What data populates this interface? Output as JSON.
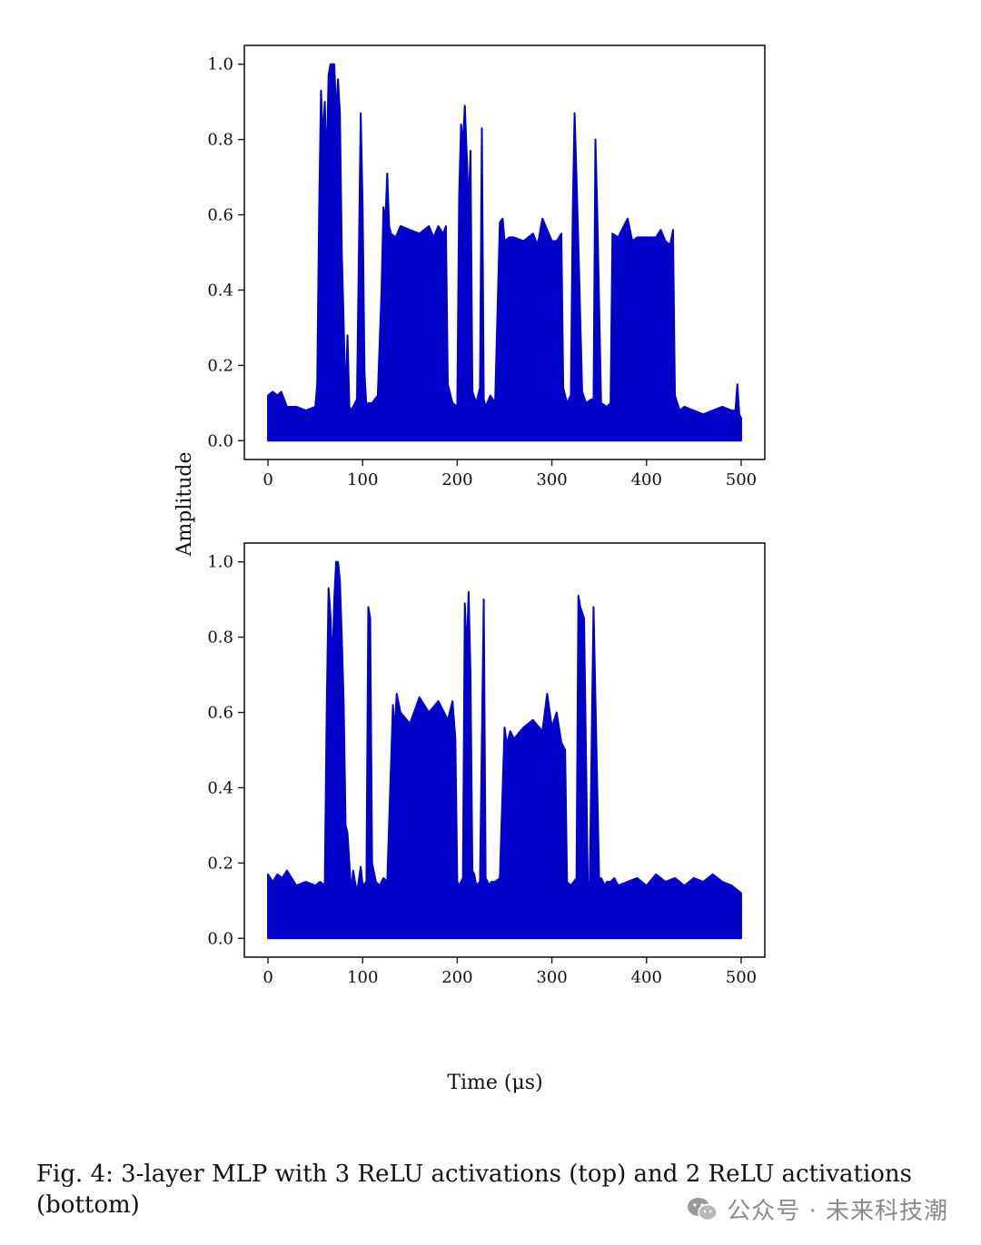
{
  "figure": {
    "shared_ylabel": "Amplitude",
    "shared_xlabel": "Time (μs)",
    "caption": "Fig. 4: 3-layer MLP with 3 ReLU activations (top) and 2 ReLU activations (bottom)"
  },
  "watermark": {
    "text": "公众号 · 未来科技潮"
  },
  "colors": {
    "series": "#0000c8",
    "axes": "#1a1a1a",
    "watermark": "#8a8a8a"
  },
  "chart_data": [
    {
      "type": "line",
      "title": "",
      "xlabel": "Time (μs)",
      "ylabel": "Amplitude",
      "xlim": [
        -25,
        525
      ],
      "ylim": [
        -0.05,
        1.05
      ],
      "xticks": [
        "0",
        "100",
        "200",
        "300",
        "400",
        "500"
      ],
      "yticks": [
        "0.0",
        "0.2",
        "0.4",
        "0.6",
        "0.8",
        "1.0"
      ],
      "grid": false,
      "series": [
        {
          "x": [
            0,
            5,
            10,
            14,
            20,
            30,
            40,
            50,
            52,
            54,
            56,
            58,
            60,
            62,
            64,
            66,
            68,
            70,
            72,
            74,
            76,
            78,
            80,
            82,
            84,
            86,
            88,
            90,
            94,
            98,
            100,
            102,
            104,
            106,
            110,
            116,
            120,
            122,
            124,
            126,
            128,
            130,
            135,
            140,
            150,
            160,
            170,
            175,
            180,
            185,
            188,
            190,
            195,
            200,
            202,
            204,
            206,
            208,
            210,
            212,
            214,
            216,
            220,
            224,
            226,
            228,
            230,
            235,
            240,
            245,
            248,
            250,
            255,
            260,
            270,
            280,
            285,
            290,
            300,
            305,
            310,
            312,
            316,
            320,
            322,
            324,
            326,
            328,
            332,
            336,
            342,
            344,
            346,
            348,
            352,
            358,
            362,
            364,
            370,
            380,
            385,
            390,
            400,
            410,
            415,
            420,
            425,
            428,
            430,
            435,
            440,
            450,
            460,
            470,
            480,
            490,
            494,
            496,
            498,
            500
          ],
          "y": [
            0.12,
            0.13,
            0.12,
            0.13,
            0.09,
            0.09,
            0.08,
            0.09,
            0.15,
            0.6,
            0.93,
            0.8,
            0.9,
            0.72,
            0.97,
            1.0,
            1.0,
            1.0,
            0.87,
            0.96,
            0.87,
            0.5,
            0.31,
            0.1,
            0.28,
            0.09,
            0.08,
            0.09,
            0.11,
            0.87,
            0.62,
            0.18,
            0.09,
            0.1,
            0.1,
            0.12,
            0.4,
            0.62,
            0.58,
            0.71,
            0.57,
            0.55,
            0.54,
            0.57,
            0.56,
            0.55,
            0.57,
            0.54,
            0.57,
            0.55,
            0.57,
            0.15,
            0.1,
            0.09,
            0.65,
            0.84,
            0.79,
            0.89,
            0.76,
            0.62,
            0.77,
            0.13,
            0.1,
            0.14,
            0.83,
            0.11,
            0.09,
            0.12,
            0.1,
            0.58,
            0.59,
            0.53,
            0.54,
            0.54,
            0.53,
            0.55,
            0.52,
            0.59,
            0.53,
            0.53,
            0.55,
            0.14,
            0.1,
            0.12,
            0.6,
            0.87,
            0.7,
            0.52,
            0.13,
            0.1,
            0.11,
            0.1,
            0.8,
            0.6,
            0.1,
            0.09,
            0.1,
            0.55,
            0.54,
            0.59,
            0.53,
            0.54,
            0.54,
            0.54,
            0.56,
            0.53,
            0.52,
            0.56,
            0.12,
            0.08,
            0.09,
            0.08,
            0.07,
            0.08,
            0.09,
            0.08,
            0.08,
            0.15,
            0.07,
            0.06
          ]
        }
      ]
    },
    {
      "type": "line",
      "title": "",
      "xlabel": "Time (μs)",
      "ylabel": "Amplitude",
      "xlim": [
        -25,
        525
      ],
      "ylim": [
        -0.05,
        1.05
      ],
      "xticks": [
        "0",
        "100",
        "200",
        "300",
        "400",
        "500"
      ],
      "yticks": [
        "0.0",
        "0.2",
        "0.4",
        "0.6",
        "0.8",
        "1.0"
      ],
      "grid": false,
      "series": [
        {
          "x": [
            0,
            5,
            10,
            15,
            20,
            30,
            40,
            50,
            55,
            60,
            62,
            64,
            66,
            68,
            70,
            72,
            74,
            76,
            78,
            80,
            82,
            84,
            86,
            88,
            90,
            94,
            98,
            100,
            104,
            106,
            108,
            110,
            114,
            118,
            122,
            126,
            132,
            134,
            136,
            140,
            150,
            160,
            170,
            180,
            190,
            195,
            198,
            200,
            202,
            206,
            208,
            210,
            212,
            214,
            216,
            218,
            220,
            224,
            228,
            230,
            234,
            236,
            240,
            245,
            250,
            252,
            254,
            256,
            260,
            270,
            280,
            290,
            295,
            300,
            305,
            310,
            314,
            316,
            320,
            326,
            328,
            330,
            334,
            338,
            340,
            344,
            350,
            352,
            356,
            358,
            362,
            366,
            370,
            380,
            390,
            400,
            410,
            420,
            430,
            440,
            450,
            460,
            470,
            480,
            490,
            495,
            500
          ],
          "y": [
            0.17,
            0.15,
            0.17,
            0.16,
            0.18,
            0.14,
            0.15,
            0.14,
            0.15,
            0.14,
            0.6,
            0.93,
            0.86,
            0.72,
            0.9,
            1.0,
            1.0,
            0.95,
            0.8,
            0.62,
            0.3,
            0.28,
            0.2,
            0.12,
            0.18,
            0.12,
            0.19,
            0.14,
            0.15,
            0.88,
            0.85,
            0.2,
            0.15,
            0.14,
            0.16,
            0.15,
            0.62,
            0.55,
            0.65,
            0.6,
            0.57,
            0.64,
            0.6,
            0.63,
            0.58,
            0.63,
            0.53,
            0.15,
            0.14,
            0.16,
            0.89,
            0.75,
            0.92,
            0.7,
            0.18,
            0.17,
            0.14,
            0.15,
            0.9,
            0.16,
            0.14,
            0.15,
            0.15,
            0.16,
            0.56,
            0.52,
            0.53,
            0.55,
            0.53,
            0.56,
            0.58,
            0.55,
            0.65,
            0.56,
            0.6,
            0.52,
            0.5,
            0.15,
            0.14,
            0.16,
            0.91,
            0.88,
            0.85,
            0.14,
            0.15,
            0.88,
            0.15,
            0.16,
            0.14,
            0.15,
            0.15,
            0.16,
            0.14,
            0.15,
            0.16,
            0.14,
            0.17,
            0.15,
            0.16,
            0.14,
            0.16,
            0.15,
            0.17,
            0.15,
            0.14,
            0.13,
            0.12
          ]
        }
      ]
    }
  ]
}
